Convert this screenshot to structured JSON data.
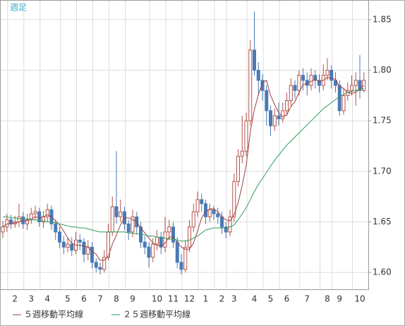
{
  "chart_data": {
    "type": "candlestick",
    "title": "週足",
    "categories": [
      null,
      null,
      null,
      "2",
      null,
      null,
      null,
      "3",
      null,
      null,
      null,
      "4",
      null,
      null,
      null,
      null,
      "5",
      null,
      null,
      null,
      "6",
      null,
      null,
      null,
      "7",
      null,
      null,
      null,
      "8",
      null,
      null,
      null,
      "9",
      null,
      null,
      null,
      null,
      null,
      "10",
      null,
      null,
      null,
      "11",
      null,
      null,
      null,
      "12",
      null,
      null,
      null,
      "1",
      null,
      null,
      null,
      "2",
      null,
      null,
      "3",
      null,
      null,
      null,
      null,
      "4",
      null,
      null,
      null,
      "5",
      null,
      null,
      null,
      "6",
      null,
      null,
      null,
      null,
      "7",
      null,
      null,
      null,
      null,
      "8",
      null,
      null,
      "9",
      null,
      null,
      null,
      null,
      "10",
      null
    ],
    "candles": {
      "up_color": "#b5524a",
      "down_color": "#4a7ab5",
      "open": [
        1.64,
        1.645,
        1.652,
        1.648,
        1.65,
        1.655,
        1.648,
        1.652,
        1.658,
        1.66,
        1.65,
        1.655,
        1.662,
        1.648,
        1.64,
        1.63,
        1.625,
        1.628,
        1.622,
        1.632,
        1.63,
        1.618,
        1.625,
        1.61,
        1.605,
        1.603,
        1.615,
        1.64,
        1.665,
        1.655,
        1.66,
        1.648,
        1.64,
        1.655,
        1.645,
        1.63,
        1.625,
        1.615,
        1.628,
        1.635,
        1.625,
        1.64,
        1.645,
        1.63,
        1.61,
        1.603,
        1.625,
        1.645,
        1.66,
        1.672,
        1.668,
        1.655,
        1.662,
        1.658,
        1.655,
        1.645,
        1.64,
        1.655,
        1.69,
        1.715,
        1.72,
        1.75,
        1.82,
        1.8,
        1.79,
        1.78,
        1.76,
        1.745,
        1.755,
        1.752,
        1.76,
        1.77,
        1.785,
        1.78,
        1.795,
        1.79,
        1.785,
        1.795,
        1.79,
        1.785,
        1.795,
        1.8,
        1.79,
        1.785,
        1.76,
        1.775,
        1.78,
        1.785,
        1.79,
        1.78
      ],
      "high": [
        1.651,
        1.658,
        1.657,
        1.656,
        1.668,
        1.66,
        1.658,
        1.664,
        1.666,
        1.664,
        1.661,
        1.668,
        1.666,
        1.652,
        1.645,
        1.636,
        1.634,
        1.635,
        1.64,
        1.638,
        1.634,
        1.632,
        1.63,
        1.614,
        1.61,
        1.622,
        1.648,
        1.675,
        1.72,
        1.672,
        1.665,
        1.652,
        1.662,
        1.66,
        1.65,
        1.636,
        1.63,
        1.634,
        1.642,
        1.64,
        1.655,
        1.652,
        1.65,
        1.635,
        1.618,
        1.632,
        1.652,
        1.668,
        1.68,
        1.678,
        1.672,
        1.668,
        1.666,
        1.664,
        1.66,
        1.65,
        1.662,
        1.698,
        1.722,
        1.755,
        1.758,
        1.83,
        1.858,
        1.808,
        1.796,
        1.785,
        1.765,
        1.762,
        1.768,
        1.768,
        1.778,
        1.792,
        1.79,
        1.8,
        1.802,
        1.798,
        1.802,
        1.8,
        1.796,
        1.806,
        1.812,
        1.805,
        1.798,
        1.79,
        1.782,
        1.788,
        1.795,
        1.798,
        1.815,
        1.798
      ],
      "low": [
        1.634,
        1.64,
        1.643,
        1.644,
        1.645,
        1.643,
        1.642,
        1.648,
        1.652,
        1.645,
        1.644,
        1.65,
        1.642,
        1.632,
        1.624,
        1.618,
        1.62,
        1.616,
        1.618,
        1.622,
        1.61,
        1.612,
        1.604,
        1.6,
        1.598,
        1.6,
        1.612,
        1.636,
        1.648,
        1.65,
        1.642,
        1.632,
        1.635,
        1.638,
        1.624,
        1.618,
        1.605,
        1.61,
        1.622,
        1.618,
        1.62,
        1.632,
        1.624,
        1.604,
        1.598,
        1.6,
        1.62,
        1.64,
        1.655,
        1.66,
        1.648,
        1.65,
        1.652,
        1.648,
        1.638,
        1.634,
        1.636,
        1.65,
        1.685,
        1.708,
        1.715,
        1.745,
        1.795,
        1.775,
        1.77,
        1.745,
        1.735,
        1.74,
        1.745,
        1.748,
        1.755,
        1.765,
        1.772,
        1.775,
        1.78,
        1.775,
        1.78,
        1.782,
        1.778,
        1.78,
        1.79,
        1.782,
        1.778,
        1.755,
        1.756,
        1.77,
        1.775,
        1.765,
        1.772,
        1.778
      ],
      "close": [
        1.645,
        1.652,
        1.648,
        1.65,
        1.655,
        1.648,
        1.652,
        1.658,
        1.66,
        1.65,
        1.655,
        1.662,
        1.648,
        1.64,
        1.63,
        1.625,
        1.628,
        1.622,
        1.632,
        1.63,
        1.618,
        1.625,
        1.61,
        1.605,
        1.603,
        1.615,
        1.64,
        1.665,
        1.655,
        1.66,
        1.648,
        1.64,
        1.655,
        1.645,
        1.63,
        1.625,
        1.615,
        1.628,
        1.635,
        1.625,
        1.64,
        1.645,
        1.63,
        1.61,
        1.603,
        1.625,
        1.645,
        1.66,
        1.672,
        1.668,
        1.655,
        1.662,
        1.658,
        1.655,
        1.645,
        1.64,
        1.655,
        1.69,
        1.715,
        1.72,
        1.75,
        1.82,
        1.8,
        1.79,
        1.78,
        1.76,
        1.745,
        1.755,
        1.752,
        1.76,
        1.77,
        1.785,
        1.78,
        1.795,
        1.79,
        1.785,
        1.795,
        1.79,
        1.785,
        1.795,
        1.8,
        1.79,
        1.785,
        1.76,
        1.775,
        1.78,
        1.785,
        1.79,
        1.78,
        1.79
      ]
    },
    "series": [
      {
        "name": "５週移動平均線",
        "color": "#a04040",
        "values": [
          1.645,
          1.648,
          1.648,
          1.649,
          1.65,
          1.651,
          1.651,
          1.653,
          1.655,
          1.654,
          1.655,
          1.657,
          1.655,
          1.651,
          1.647,
          1.641,
          1.634,
          1.629,
          1.627,
          1.627,
          1.626,
          1.625,
          1.621,
          1.618,
          1.612,
          1.612,
          1.616,
          1.628,
          1.637,
          1.647,
          1.654,
          1.654,
          1.652,
          1.65,
          1.644,
          1.639,
          1.634,
          1.629,
          1.627,
          1.626,
          1.629,
          1.635,
          1.635,
          1.63,
          1.625,
          1.623,
          1.623,
          1.629,
          1.641,
          1.654,
          1.66,
          1.663,
          1.663,
          1.66,
          1.655,
          1.652,
          1.651,
          1.657,
          1.669,
          1.686,
          1.706,
          1.739,
          1.761,
          1.776,
          1.788,
          1.79,
          1.775,
          1.766,
          1.758,
          1.754,
          1.756,
          1.764,
          1.769,
          1.778,
          1.786,
          1.787,
          1.789,
          1.791,
          1.789,
          1.79,
          1.793,
          1.792,
          1.791,
          1.784,
          1.782,
          1.778,
          1.777,
          1.778,
          1.782,
          1.785
        ]
      },
      {
        "name": "２５週移動平均線",
        "color": "#2e9e5a",
        "values": [
          1.655,
          1.655,
          1.654,
          1.654,
          1.653,
          1.653,
          1.653,
          1.652,
          1.652,
          1.651,
          1.651,
          1.65,
          1.65,
          1.649,
          1.648,
          1.647,
          1.646,
          1.645,
          1.645,
          1.644,
          1.644,
          1.643,
          1.642,
          1.641,
          1.64,
          1.64,
          1.64,
          1.64,
          1.64,
          1.64,
          1.64,
          1.639,
          1.639,
          1.638,
          1.638,
          1.637,
          1.636,
          1.636,
          1.635,
          1.634,
          1.634,
          1.633,
          1.633,
          1.632,
          1.631,
          1.631,
          1.632,
          1.634,
          1.636,
          1.639,
          1.642,
          1.643,
          1.644,
          1.644,
          1.644,
          1.644,
          1.645,
          1.647,
          1.652,
          1.658,
          1.664,
          1.672,
          1.68,
          1.687,
          1.693,
          1.699,
          1.705,
          1.711,
          1.716,
          1.721,
          1.726,
          1.73,
          1.734,
          1.738,
          1.742,
          1.746,
          1.75,
          1.754,
          1.758,
          1.762,
          1.765,
          1.768,
          1.771,
          1.774,
          1.776,
          1.778,
          1.779,
          1.78,
          1.781,
          1.782
        ]
      }
    ],
    "ylim": [
      1.5833,
      1.8688
    ],
    "yticks": [
      {
        "value": 1.6,
        "label": "1.60"
      },
      1.65,
      {
        "value": 1.7,
        "label": "1.70"
      },
      1.75,
      {
        "value": 1.8,
        "label": "1.80"
      },
      1.85
    ],
    "grid": true
  }
}
